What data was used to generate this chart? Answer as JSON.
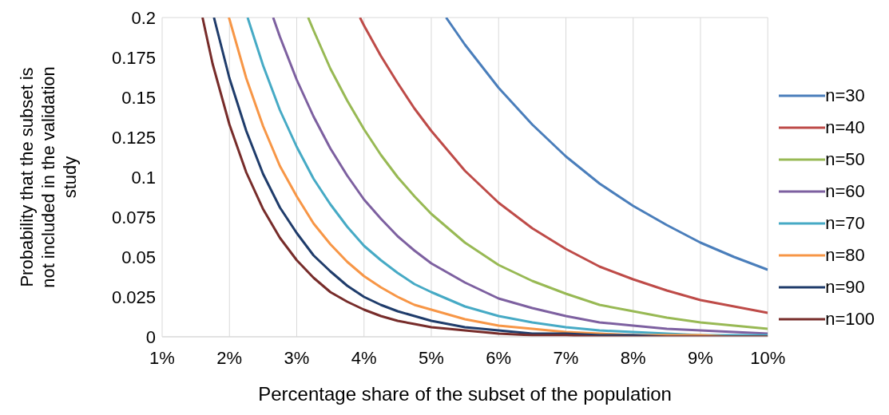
{
  "chart_data": {
    "type": "line",
    "xlabel": "Percentage share of the subset of the population",
    "ylabel": "Probability that the subset is not included in the validation study",
    "xlim": [
      1,
      10
    ],
    "xticks": [
      {
        "value": 1,
        "label": "1%"
      },
      {
        "value": 2,
        "label": "2%"
      },
      {
        "value": 3,
        "label": "3%"
      },
      {
        "value": 4,
        "label": "4%"
      },
      {
        "value": 5,
        "label": "5%"
      },
      {
        "value": 6,
        "label": "6%"
      },
      {
        "value": 7,
        "label": "7%"
      },
      {
        "value": 8,
        "label": "8%"
      },
      {
        "value": 9,
        "label": "9%"
      },
      {
        "value": 10,
        "label": "10%"
      }
    ],
    "ylim": [
      0,
      0.2
    ],
    "yticks": [
      0,
      0.025,
      0.05,
      0.075,
      0.1,
      0.125,
      0.15,
      0.175,
      0.2
    ],
    "grid": true,
    "legend": "right",
    "marker": "none",
    "line_style": "solid",
    "series": [
      {
        "name": "n=30",
        "color": "#4a7ebb",
        "x": [
          5.22,
          5.5,
          6,
          6.5,
          7,
          7.5,
          8,
          8.5,
          9,
          9.5,
          10
        ],
        "values": [
          0.2,
          0.183,
          0.156,
          0.133,
          0.113,
          0.096,
          0.082,
          0.07,
          0.059,
          0.05,
          0.042
        ]
      },
      {
        "name": "n=40",
        "color": "#be4b48",
        "x": [
          3.94,
          4,
          4.25,
          4.5,
          4.75,
          5,
          5.5,
          6,
          6.5,
          7,
          7.5,
          8,
          8.5,
          9,
          9.5,
          10
        ],
        "values": [
          0.2,
          0.195,
          0.176,
          0.159,
          0.143,
          0.129,
          0.104,
          0.084,
          0.068,
          0.055,
          0.044,
          0.036,
          0.029,
          0.023,
          0.019,
          0.015
        ]
      },
      {
        "name": "n=50",
        "color": "#98b954",
        "x": [
          3.17,
          3.25,
          3.5,
          3.75,
          4,
          4.25,
          4.5,
          4.75,
          5,
          5.5,
          6,
          6.5,
          7,
          7.5,
          8,
          8.5,
          9,
          9.5,
          10
        ],
        "values": [
          0.2,
          0.192,
          0.168,
          0.148,
          0.13,
          0.114,
          0.1,
          0.088,
          0.077,
          0.059,
          0.045,
          0.035,
          0.027,
          0.02,
          0.016,
          0.012,
          0.009,
          0.007,
          0.005
        ]
      },
      {
        "name": "n=60",
        "color": "#7d60a0",
        "x": [
          2.65,
          2.75,
          3,
          3.25,
          3.5,
          3.75,
          4,
          4.25,
          4.5,
          4.75,
          5,
          5.5,
          6,
          6.5,
          7,
          7.5,
          8,
          8.5,
          9,
          9.5,
          10
        ],
        "values": [
          0.2,
          0.188,
          0.161,
          0.138,
          0.118,
          0.101,
          0.086,
          0.074,
          0.063,
          0.054,
          0.046,
          0.034,
          0.024,
          0.018,
          0.013,
          0.009,
          0.007,
          0.005,
          0.004,
          0.003,
          0.002
        ]
      },
      {
        "name": "n=70",
        "color": "#46aac5",
        "x": [
          2.27,
          2.5,
          2.75,
          3,
          3.25,
          3.5,
          3.75,
          4,
          4.25,
          4.5,
          4.75,
          5,
          5.5,
          6,
          6.5,
          7,
          7.5,
          8,
          8.5,
          9,
          9.5,
          10
        ],
        "values": [
          0.2,
          0.17,
          0.142,
          0.119,
          0.099,
          0.083,
          0.069,
          0.057,
          0.048,
          0.04,
          0.033,
          0.028,
          0.019,
          0.013,
          0.009,
          0.006,
          0.004,
          0.003,
          0.002,
          0.001,
          0.001,
          0.001
        ]
      },
      {
        "name": "n=80",
        "color": "#f79646",
        "x": [
          1.99,
          2,
          2.25,
          2.5,
          2.75,
          3,
          3.25,
          3.5,
          3.75,
          4,
          4.25,
          4.5,
          4.75,
          5,
          5.5,
          6,
          6.5,
          7,
          7.5,
          8,
          8.5,
          9,
          9.5,
          10
        ],
        "values": [
          0.2,
          0.199,
          0.162,
          0.132,
          0.107,
          0.088,
          0.071,
          0.058,
          0.047,
          0.038,
          0.031,
          0.025,
          0.02,
          0.017,
          0.011,
          0.007,
          0.005,
          0.003,
          0.002,
          0.001,
          0.001,
          0.001,
          0,
          0
        ]
      },
      {
        "name": "n=90",
        "color": "#1f3c6b",
        "x": [
          1.77,
          2,
          2.25,
          2.5,
          2.75,
          3,
          3.25,
          3.5,
          3.75,
          4,
          4.25,
          4.5,
          4.75,
          5,
          5.5,
          6,
          6.5,
          7,
          7.5,
          8,
          8.5,
          9,
          9.5,
          10
        ],
        "values": [
          0.2,
          0.162,
          0.129,
          0.102,
          0.081,
          0.065,
          0.051,
          0.041,
          0.032,
          0.025,
          0.02,
          0.016,
          0.013,
          0.01,
          0.006,
          0.004,
          0.002,
          0.002,
          0.001,
          0.001,
          0,
          0,
          0,
          0
        ]
      },
      {
        "name": "n=100",
        "color": "#772c2a",
        "x": [
          1.6,
          1.75,
          2,
          2.25,
          2.5,
          2.75,
          3,
          3.25,
          3.5,
          3.75,
          4,
          4.25,
          4.5,
          4.75,
          5,
          5.5,
          6,
          6.5,
          7,
          7.5,
          8,
          8.5,
          9,
          9.5,
          10
        ],
        "values": [
          0.2,
          0.171,
          0.133,
          0.103,
          0.08,
          0.062,
          0.048,
          0.037,
          0.028,
          0.022,
          0.017,
          0.013,
          0.01,
          0.008,
          0.006,
          0.004,
          0.002,
          0.001,
          0.001,
          0,
          0,
          0,
          0,
          0,
          0
        ]
      }
    ]
  }
}
